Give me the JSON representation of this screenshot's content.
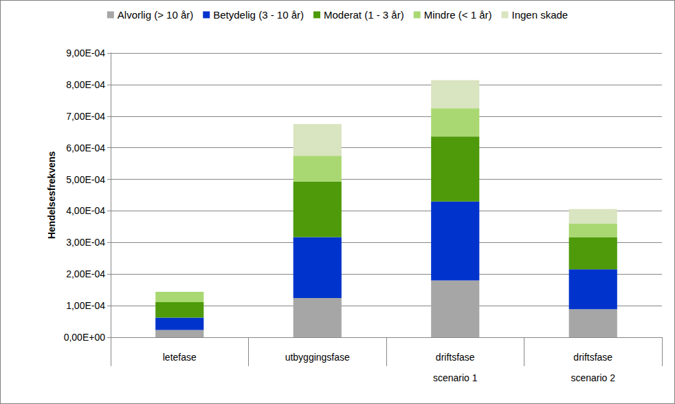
{
  "chart_data": {
    "type": "bar",
    "stacked": true,
    "grid": true,
    "legend": "top",
    "y_label": "Hendelsesfrekvens",
    "categories": [
      "letefase",
      "utbyggingsfase",
      "driftsfase\nscenario 1",
      "driftsfase\nscenario 2"
    ],
    "series": [
      {
        "name": "Alvorlig (> 10 år)",
        "color": "#a6a6a6",
        "values": [
          2.3e-05,
          0.000124,
          0.00018,
          8.9e-05
        ]
      },
      {
        "name": "Betydelig (3 - 10 år)",
        "color": "#0033cc",
        "values": [
          3.9e-05,
          0.000193,
          0.00025,
          0.000126
        ]
      },
      {
        "name": "Moderat (1 - 3 år)",
        "color": "#4e9a0a",
        "values": [
          4.9e-05,
          0.000176,
          0.000206,
          0.000102
        ]
      },
      {
        "name": "Mindre (< 1 år)",
        "color": "#a9d872",
        "values": [
          3.3e-05,
          8.2e-05,
          8.9e-05,
          4.3e-05
        ]
      },
      {
        "name": "Ingen skade",
        "color": "#d9e4c0",
        "values": [
          0,
          0.0001,
          8.9e-05,
          4.6e-05
        ]
      }
    ],
    "ylim": [
      0,
      0.0009
    ],
    "yticks": [
      {
        "value": 0,
        "label": "0,00E+00"
      },
      {
        "value": 0.0001,
        "label": "1,00E-04"
      },
      {
        "value": 0.0002,
        "label": "2,00E-04"
      },
      {
        "value": 0.0003,
        "label": "3,00E-04"
      },
      {
        "value": 0.0004,
        "label": "4,00E-04"
      },
      {
        "value": 0.0005,
        "label": "5,00E-04"
      },
      {
        "value": 0.0006,
        "label": "6,00E-04"
      },
      {
        "value": 0.0007,
        "label": "7,00E-04"
      },
      {
        "value": 0.0008,
        "label": "8,00E-04"
      },
      {
        "value": 0.0009,
        "label": "9,00E-04"
      }
    ]
  }
}
